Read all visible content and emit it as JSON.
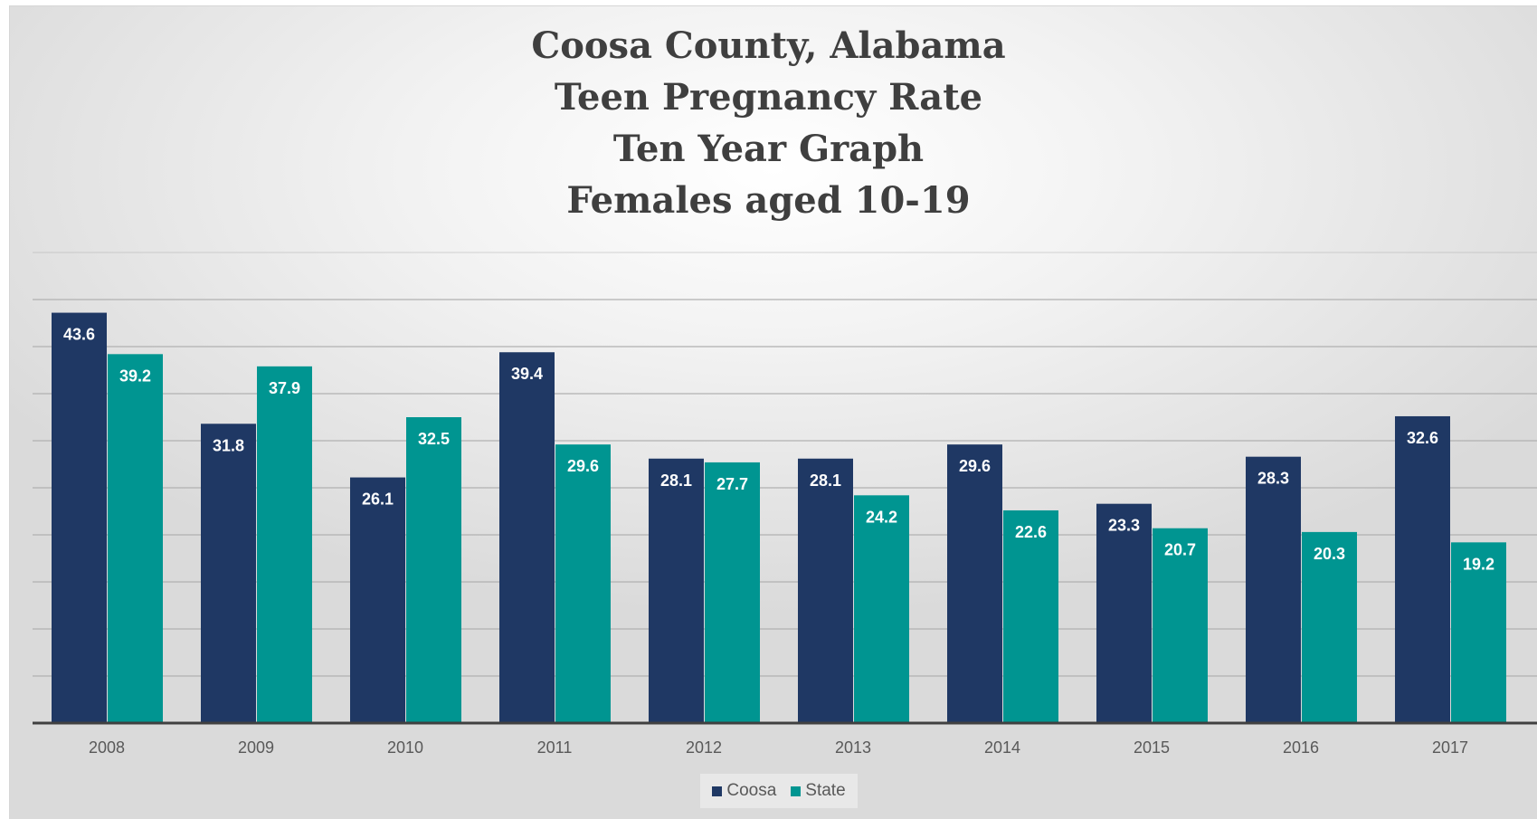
{
  "colors": {
    "coosa": "#1f3864",
    "state": "#009591",
    "gridline": "#b2b2b2",
    "axis": "#404040"
  },
  "chart_data": {
    "type": "bar",
    "title": [
      "Coosa County, Alabama",
      "Teen Pregnancy Rate",
      "Ten Year Graph",
      "Females aged 10-19"
    ],
    "categories": [
      "2008",
      "2009",
      "2010",
      "2011",
      "2012",
      "2013",
      "2014",
      "2015",
      "2016",
      "2017"
    ],
    "series": [
      {
        "name": "Coosa",
        "values": [
          43.6,
          31.8,
          26.1,
          39.4,
          28.1,
          28.1,
          29.6,
          23.3,
          28.3,
          32.6
        ]
      },
      {
        "name": "State",
        "values": [
          39.2,
          37.9,
          32.5,
          29.6,
          27.7,
          24.2,
          22.6,
          20.7,
          20.3,
          19.2
        ]
      }
    ],
    "value_labels": {
      "Coosa": [
        "43.6",
        "31.8",
        "26.1",
        "39.4",
        "28.1",
        "28.1",
        "29.6",
        "23.3",
        "28.3",
        "32.6"
      ],
      "State": [
        "39.2",
        "37.9",
        "32.5",
        "29.6",
        "27.7",
        "24.2",
        "22.6",
        "20.7",
        "20.3",
        "19.2"
      ]
    },
    "ylim": [
      0,
      50
    ],
    "ytick_step": 5,
    "grid": true,
    "show_y_axis_labels": false,
    "legend_position": "bottom"
  }
}
